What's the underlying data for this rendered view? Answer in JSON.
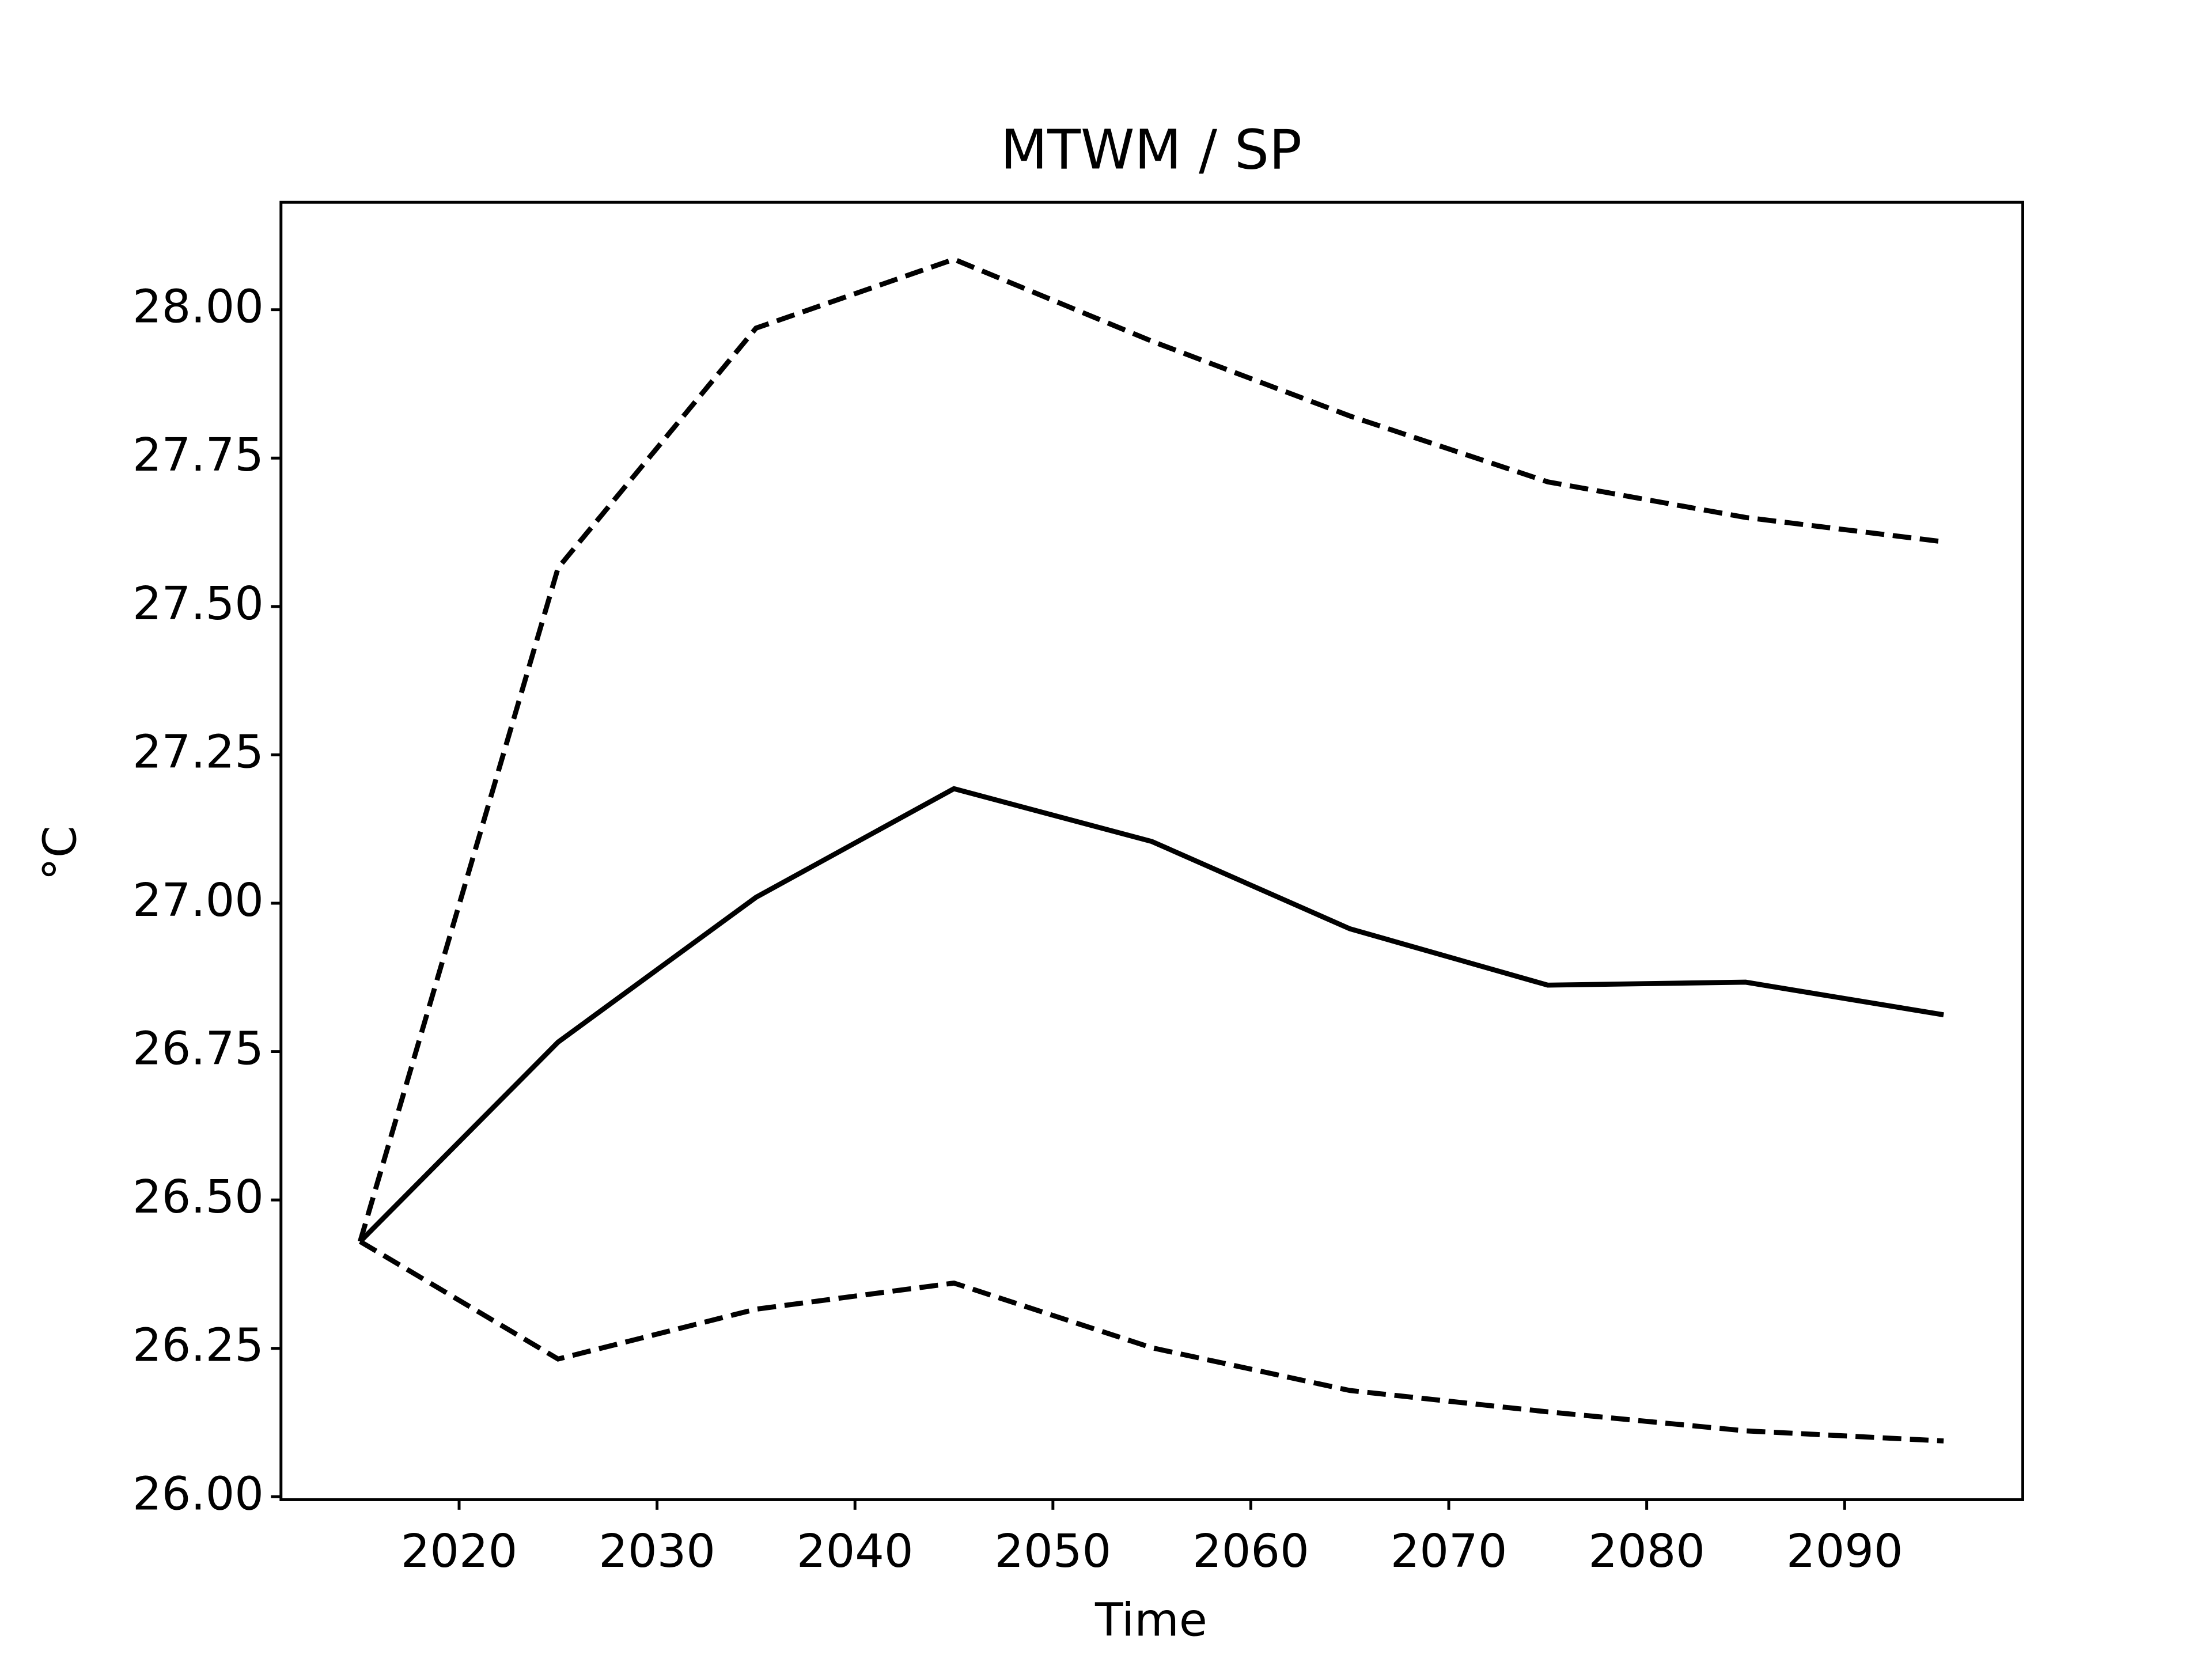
{
  "chart_data": {
    "type": "line",
    "title": "MTWM / SP",
    "xlabel": "Time",
    "ylabel": "°C",
    "x": [
      2015,
      2025,
      2035,
      2045,
      2055,
      2065,
      2075,
      2085,
      2095
    ],
    "series": [
      {
        "color": "#000000",
        "linestyle": "solid",
        "values": [
          26.43,
          26.766,
          27.01,
          27.193,
          27.104,
          26.957,
          26.862,
          26.867,
          26.812
        ]
      },
      {
        "color": "#000000",
        "linestyle": "dashed",
        "values": [
          26.43,
          27.565,
          27.969,
          28.085,
          27.947,
          27.821,
          27.71,
          27.65,
          27.609
        ]
      },
      {
        "color": "#000000",
        "linestyle": "dashed",
        "values": [
          26.43,
          26.232,
          26.316,
          26.36,
          26.251,
          26.179,
          26.143,
          26.111,
          26.094
        ]
      }
    ],
    "xlim": [
      2011,
      2099
    ],
    "ylim": [
      25.995,
      28.181
    ],
    "xticks": [
      2020,
      2030,
      2040,
      2050,
      2060,
      2070,
      2080,
      2090
    ],
    "yticks": [
      {
        "value": 26,
        "label": "26.00"
      },
      {
        "value": 26.25,
        "label": "26.25"
      },
      {
        "value": 26.5,
        "label": "26.50"
      },
      {
        "value": 26.75,
        "label": "26.75"
      },
      {
        "value": 27,
        "label": "27.00"
      },
      {
        "value": 27.25,
        "label": "27.25"
      },
      {
        "value": 27.5,
        "label": "27.50"
      },
      {
        "value": 27.75,
        "label": "27.75"
      },
      {
        "value": 28,
        "label": "28.00"
      }
    ],
    "grid": false
  }
}
